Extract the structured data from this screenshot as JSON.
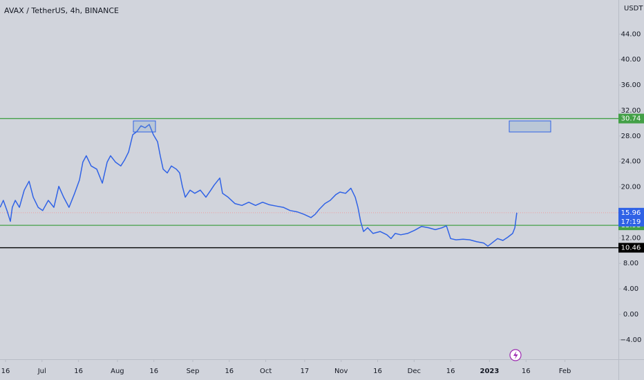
{
  "chart_data": {
    "type": "line",
    "title": "AVAX / TetherUS, 4h, BINANCE",
    "currency": "USDT",
    "x": [
      -2.2,
      -0.9,
      0.6,
      2.0,
      2.8,
      4.0,
      5.7,
      7.7,
      9.7,
      11.4,
      13.4,
      15.3,
      17.6,
      19.9,
      21.9,
      23.9,
      26.1,
      28.4,
      30.4,
      31.8,
      33.2,
      35.2,
      37.5,
      39.8,
      41.8,
      43.2,
      45.2,
      47.4,
      48.9,
      50.6,
      52.3,
      54.0,
      55.7,
      57.4,
      59.1,
      60.8,
      62.5,
      63.6,
      64.8,
      66.5,
      68.2,
      70.2,
      71.6,
      72.7,
      73.9,
      75.9,
      77.8,
      80.1,
      82.4,
      84.4,
      85.8,
      88.1,
      89.2,
      91.5,
      94.3,
      97.2,
      100.0,
      102.8,
      105.7,
      108.5,
      111.4,
      114.2,
      117.0,
      119.9,
      122.7,
      125.6,
      127.3,
      129.0,
      131.3,
      133.5,
      135.8,
      137.5,
      139.8,
      142.0,
      143.8,
      144.9,
      146.0,
      147.2,
      148.9,
      151.1,
      154.0,
      156.8,
      158.5,
      160.2,
      162.5,
      165.3,
      168.2,
      171.0,
      173.9,
      176.7,
      179.5,
      181.3,
      183.0,
      185.2,
      188.1,
      190.9,
      193.8,
      196.6,
      198.3,
      200.0,
      202.3,
      204.5,
      206.5,
      208.5,
      209.4,
      210.2
    ],
    "series": [
      {
        "name": "AVAX / TetherUS",
        "color": "#2f62e6",
        "values": [
          16.8,
          17.9,
          16.3,
          14.6,
          16.8,
          17.9,
          16.8,
          19.5,
          20.9,
          18.4,
          16.8,
          16.3,
          17.9,
          16.8,
          20.1,
          18.4,
          16.8,
          19.0,
          21.1,
          23.9,
          24.9,
          23.3,
          22.8,
          20.6,
          23.9,
          24.9,
          23.9,
          23.3,
          24.2,
          25.5,
          28.2,
          28.7,
          29.6,
          29.3,
          29.8,
          28.2,
          27.1,
          24.9,
          22.8,
          22.2,
          23.3,
          22.8,
          22.2,
          20.1,
          18.4,
          19.5,
          19.0,
          19.5,
          18.4,
          19.5,
          20.3,
          21.4,
          19.0,
          18.4,
          17.4,
          17.1,
          17.6,
          17.1,
          17.6,
          17.2,
          17.0,
          16.8,
          16.3,
          16.1,
          15.7,
          15.2,
          15.7,
          16.5,
          17.4,
          17.9,
          18.8,
          19.2,
          19.0,
          19.8,
          18.4,
          16.8,
          14.6,
          13.0,
          13.6,
          12.7,
          13.0,
          12.5,
          11.9,
          12.7,
          12.5,
          12.7,
          13.2,
          13.8,
          13.6,
          13.3,
          13.6,
          13.9,
          11.9,
          11.7,
          11.8,
          11.7,
          11.4,
          11.2,
          10.7,
          11.2,
          11.9,
          11.6,
          12.1,
          12.7,
          13.6,
          15.96
        ]
      }
    ],
    "xlim": [
      -2.27,
      252
    ],
    "xticks": [
      {
        "value": 0,
        "label": "16"
      },
      {
        "value": 15,
        "label": "Jul"
      },
      {
        "value": 30,
        "label": "16"
      },
      {
        "value": 46,
        "label": "Aug"
      },
      {
        "value": 61,
        "label": "16"
      },
      {
        "value": 77,
        "label": "Sep"
      },
      {
        "value": 92,
        "label": "16"
      },
      {
        "value": 107,
        "label": "Oct"
      },
      {
        "value": 123,
        "label": "17"
      },
      {
        "value": 138,
        "label": "Nov"
      },
      {
        "value": 153,
        "label": "16"
      },
      {
        "value": 168,
        "label": "Dec"
      },
      {
        "value": 183,
        "label": "16"
      },
      {
        "value": 199,
        "label": "2023"
      },
      {
        "value": 214,
        "label": "16"
      },
      {
        "value": 230,
        "label": "Feb"
      }
    ],
    "ylim": [
      -7.05,
      49.35
    ],
    "yticks": [
      {
        "value": -4,
        "label": "−4.00"
      },
      {
        "value": 0,
        "label": "0.00"
      },
      {
        "value": 4,
        "label": "4.00"
      },
      {
        "value": 8,
        "label": "8.00"
      },
      {
        "value": 12,
        "label": "12.00"
      },
      {
        "value": 20,
        "label": "20.00"
      },
      {
        "value": 24,
        "label": "24.00"
      },
      {
        "value": 28,
        "label": "28.00"
      },
      {
        "value": 32,
        "label": "32.00"
      },
      {
        "value": 36,
        "label": "36.00"
      },
      {
        "value": 40,
        "label": "40.00"
      },
      {
        "value": 44,
        "label": "44.00"
      }
    ],
    "levels": [
      {
        "value": 30.74,
        "color": "#43a047"
      },
      {
        "value": 13.98,
        "color": "#43a047"
      },
      {
        "value": 10.46,
        "color": "#000000"
      }
    ],
    "last_price": {
      "value": 15.96,
      "countdown": "17:19",
      "color": "#2f62e6",
      "line_color": "#ef9a9a"
    }
  }
}
